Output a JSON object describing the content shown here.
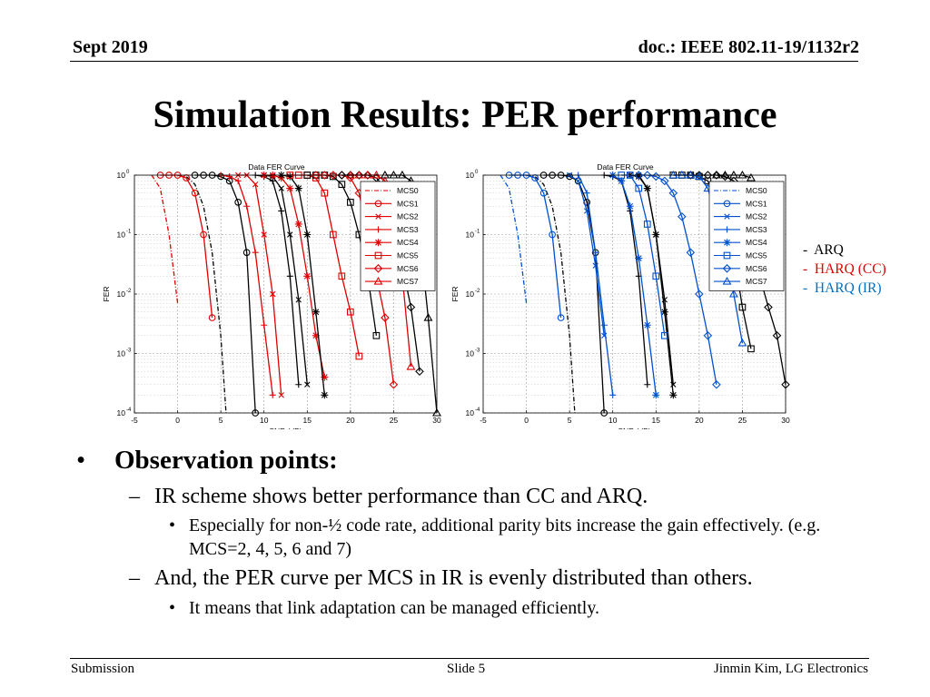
{
  "header": {
    "date": "Sept 2019",
    "doc": "doc.: IEEE 802.11-19/1132r2"
  },
  "title": "Simulation Results: PER performance",
  "legend": {
    "items": [
      {
        "dash": "-",
        "label": "ARQ",
        "color": "#000000"
      },
      {
        "dash": "-",
        "label": "HARQ (CC)",
        "color": "#e00000"
      },
      {
        "dash": "-",
        "label": "HARQ (IR)",
        "color": "#0070c0"
      }
    ]
  },
  "chart_data": [
    {
      "type": "line",
      "title": "Data FER Curve",
      "xlabel": "SNR (dB)",
      "ylabel": "FER",
      "yscale": "log",
      "xlim": [
        -5,
        30
      ],
      "ylim": [
        0.0001,
        1
      ],
      "xticks": [
        "-5",
        "0",
        "5",
        "10",
        "15",
        "20",
        "25",
        "30"
      ],
      "yticks": [
        {
          "base": "10",
          "exp": "0"
        },
        {
          "base": "10",
          "exp": "-1"
        },
        {
          "base": "10",
          "exp": "-2"
        },
        {
          "base": "10",
          "exp": "-3"
        },
        {
          "base": "10",
          "exp": "-4"
        }
      ],
      "legend_position": "top-right",
      "legend": [
        "MCS0",
        "MCS1",
        "MCS2",
        "MCS3",
        "MCS4",
        "MCS5",
        "MCS6",
        "MCS7"
      ],
      "series": [
        {
          "name": "MCS0",
          "scheme": "CC",
          "color": "#e00000",
          "marker": "none",
          "dash": "dashdot",
          "x": [
            -3,
            -2,
            -1,
            0
          ],
          "y": [
            1,
            0.6,
            0.1,
            0.007
          ]
        },
        {
          "name": "MCS0",
          "scheme": "ARQ",
          "color": "#000000",
          "marker": "none",
          "dash": "dashdot",
          "x": [
            0,
            1,
            2,
            3,
            4,
            5,
            5.6
          ],
          "y": [
            1,
            0.95,
            0.7,
            0.3,
            0.05,
            0.002,
            0.0001
          ]
        },
        {
          "name": "MCS1",
          "scheme": "CC",
          "color": "#e00000",
          "marker": "circle",
          "x": [
            -2,
            -1,
            0,
            1,
            2,
            3,
            4
          ],
          "y": [
            1,
            1,
            1,
            0.9,
            0.5,
            0.1,
            0.004
          ]
        },
        {
          "name": "MCS1",
          "scheme": "ARQ",
          "color": "#000000",
          "marker": "circle",
          "x": [
            2,
            3,
            4,
            5,
            6,
            7,
            8,
            9
          ],
          "y": [
            1,
            1,
            1,
            0.95,
            0.8,
            0.35,
            0.05,
            0.0001
          ]
        },
        {
          "name": "MCS2",
          "scheme": "CC",
          "color": "#e00000",
          "marker": "x",
          "x": [
            7,
            8,
            9,
            10,
            11,
            12
          ],
          "y": [
            1,
            1,
            0.7,
            0.1,
            0.01,
            0.0002
          ]
        },
        {
          "name": "MCS2",
          "scheme": "ARQ",
          "color": "#000000",
          "marker": "x",
          "x": [
            10,
            11,
            12,
            13,
            14,
            15
          ],
          "y": [
            1,
            0.95,
            0.6,
            0.1,
            0.008,
            0.0003
          ]
        },
        {
          "name": "MCS3",
          "scheme": "CC",
          "color": "#e00000",
          "marker": "plus",
          "x": [
            5,
            6,
            7,
            8,
            9,
            10,
            11
          ],
          "y": [
            1,
            0.95,
            0.8,
            0.3,
            0.05,
            0.003,
            0.0002
          ]
        },
        {
          "name": "MCS3",
          "scheme": "ARQ",
          "color": "#000000",
          "marker": "plus",
          "x": [
            9,
            10,
            11,
            12,
            13,
            14
          ],
          "y": [
            1,
            0.95,
            0.8,
            0.25,
            0.02,
            0.0003
          ]
        },
        {
          "name": "MCS4",
          "scheme": "CC",
          "color": "#e00000",
          "marker": "star",
          "x": [
            10,
            11,
            12,
            13,
            14,
            15,
            16,
            17
          ],
          "y": [
            1,
            1,
            0.9,
            0.6,
            0.15,
            0.02,
            0.002,
            0.0004
          ]
        },
        {
          "name": "MCS4",
          "scheme": "ARQ",
          "color": "#000000",
          "marker": "star",
          "x": [
            12,
            13,
            14,
            15,
            16,
            17
          ],
          "y": [
            1,
            0.95,
            0.6,
            0.1,
            0.005,
            0.0002
          ]
        },
        {
          "name": "MCS5",
          "scheme": "CC",
          "color": "#e00000",
          "marker": "square",
          "x": [
            13,
            14,
            15,
            16,
            17,
            18,
            19,
            20,
            21
          ],
          "y": [
            1,
            1,
            1,
            0.9,
            0.5,
            0.1,
            0.02,
            0.005,
            0.0009
          ]
        },
        {
          "name": "MCS5",
          "scheme": "ARQ",
          "color": "#000000",
          "marker": "square",
          "x": [
            15,
            16,
            17,
            18,
            19,
            20,
            21,
            22,
            23
          ],
          "y": [
            1,
            1,
            1,
            0.95,
            0.7,
            0.35,
            0.1,
            0.02,
            0.002
          ]
        },
        {
          "name": "MCS6",
          "scheme": "CC",
          "color": "#e00000",
          "marker": "diamond",
          "x": [
            16,
            17,
            18,
            19,
            20,
            21,
            22,
            23,
            24,
            25
          ],
          "y": [
            1,
            1,
            1,
            1,
            0.9,
            0.5,
            0.1,
            0.02,
            0.004,
            0.0003
          ]
        },
        {
          "name": "MCS6",
          "scheme": "ARQ",
          "color": "#000000",
          "marker": "diamond",
          "x": [
            19,
            20,
            21,
            22,
            23,
            24,
            25,
            26,
            27,
            28
          ],
          "y": [
            1,
            1,
            1,
            1,
            0.9,
            0.6,
            0.15,
            0.03,
            0.006,
            0.0005
          ]
        },
        {
          "name": "MCS7",
          "scheme": "CC",
          "color": "#e00000",
          "marker": "triangle",
          "x": [
            20,
            21,
            22,
            23,
            24,
            25,
            26,
            27
          ],
          "y": [
            1,
            1,
            1,
            1,
            0.8,
            0.2,
            0.02,
            0.0006
          ]
        },
        {
          "name": "MCS7",
          "scheme": "ARQ",
          "color": "#000000",
          "marker": "triangle",
          "x": [
            24,
            25,
            26,
            27,
            28,
            29,
            30
          ],
          "y": [
            1,
            1,
            1,
            0.8,
            0.1,
            0.004,
            0.0001
          ]
        }
      ]
    },
    {
      "type": "line",
      "title": "Data FER Curve",
      "xlabel": "SNR (dB)",
      "ylabel": "FER",
      "yscale": "log",
      "xlim": [
        -5,
        30
      ],
      "ylim": [
        0.0001,
        1
      ],
      "xticks": [
        "-5",
        "0",
        "5",
        "10",
        "15",
        "20",
        "25",
        "30"
      ],
      "yticks": [
        {
          "base": "10",
          "exp": "0"
        },
        {
          "base": "10",
          "exp": "-1"
        },
        {
          "base": "10",
          "exp": "-2"
        },
        {
          "base": "10",
          "exp": "-3"
        },
        {
          "base": "10",
          "exp": "-4"
        }
      ],
      "legend_position": "top-right",
      "legend": [
        "MCS0",
        "MCS1",
        "MCS2",
        "MCS3",
        "MCS4",
        "MCS5",
        "MCS6",
        "MCS7"
      ],
      "series": [
        {
          "name": "MCS0",
          "scheme": "IR",
          "color": "#0050d0",
          "marker": "none",
          "dash": "dashdot",
          "x": [
            -3,
            -2,
            -1,
            0
          ],
          "y": [
            1,
            0.6,
            0.1,
            0.007
          ]
        },
        {
          "name": "MCS0",
          "scheme": "ARQ",
          "color": "#000000",
          "marker": "none",
          "dash": "dashdot",
          "x": [
            0,
            1,
            2,
            3,
            4,
            5,
            5.6
          ],
          "y": [
            1,
            0.95,
            0.7,
            0.3,
            0.05,
            0.002,
            0.0001
          ]
        },
        {
          "name": "MCS1",
          "scheme": "IR",
          "color": "#0050d0",
          "marker": "circle",
          "x": [
            -2,
            -1,
            0,
            1,
            2,
            3,
            4
          ],
          "y": [
            1,
            1,
            1,
            0.9,
            0.5,
            0.1,
            0.004
          ]
        },
        {
          "name": "MCS1",
          "scheme": "ARQ",
          "color": "#000000",
          "marker": "circle",
          "x": [
            2,
            3,
            4,
            5,
            6,
            7,
            8,
            9
          ],
          "y": [
            1,
            1,
            1,
            0.95,
            0.8,
            0.35,
            0.05,
            0.0001
          ]
        },
        {
          "name": "MCS2",
          "scheme": "IR",
          "color": "#0050d0",
          "marker": "x",
          "x": [
            5,
            6,
            7,
            8,
            9
          ],
          "y": [
            1,
            0.8,
            0.25,
            0.03,
            0.002
          ]
        },
        {
          "name": "MCS2",
          "scheme": "ARQ",
          "color": "#000000",
          "marker": "x",
          "x": [
            13,
            14,
            15,
            16,
            17
          ],
          "y": [
            1,
            0.6,
            0.1,
            0.008,
            0.0003
          ]
        },
        {
          "name": "MCS3",
          "scheme": "IR",
          "color": "#0050d0",
          "marker": "plus",
          "x": [
            6,
            7,
            8,
            9,
            10
          ],
          "y": [
            1,
            0.5,
            0.05,
            0.003,
            0.0002
          ]
        },
        {
          "name": "MCS3",
          "scheme": "ARQ",
          "color": "#000000",
          "marker": "plus",
          "x": [
            9,
            10,
            11,
            12,
            13,
            14
          ],
          "y": [
            1,
            0.95,
            0.8,
            0.25,
            0.02,
            0.0003
          ]
        },
        {
          "name": "MCS4",
          "scheme": "IR",
          "color": "#0050d0",
          "marker": "star",
          "x": [
            10,
            11,
            12,
            13,
            14,
            15
          ],
          "y": [
            1,
            0.8,
            0.3,
            0.04,
            0.003,
            0.0002
          ]
        },
        {
          "name": "MCS4",
          "scheme": "ARQ",
          "color": "#000000",
          "marker": "star",
          "x": [
            12,
            13,
            14,
            15,
            16,
            17
          ],
          "y": [
            1,
            0.95,
            0.6,
            0.1,
            0.005,
            0.0002
          ]
        },
        {
          "name": "MCS5",
          "scheme": "IR",
          "color": "#0050d0",
          "marker": "square",
          "x": [
            11,
            12,
            13,
            14,
            15,
            16
          ],
          "y": [
            1,
            1,
            0.6,
            0.15,
            0.02,
            0.002
          ]
        },
        {
          "name": "MCS5",
          "scheme": "ARQ",
          "color": "#000000",
          "marker": "square",
          "x": [
            17,
            18,
            19,
            20,
            21,
            22,
            23,
            24,
            25,
            26
          ],
          "y": [
            1,
            1,
            1,
            0.95,
            0.8,
            0.4,
            0.15,
            0.05,
            0.006,
            0.0012
          ]
        },
        {
          "name": "MCS6",
          "scheme": "IR",
          "color": "#0050d0",
          "marker": "diamond",
          "x": [
            13,
            14,
            15,
            16,
            17,
            18,
            19,
            20,
            21,
            22
          ],
          "y": [
            1,
            1,
            0.95,
            0.8,
            0.5,
            0.2,
            0.05,
            0.01,
            0.002,
            0.0003
          ]
        },
        {
          "name": "MCS6",
          "scheme": "ARQ",
          "color": "#000000",
          "marker": "diamond",
          "x": [
            19,
            20,
            21,
            22,
            23,
            24,
            25,
            26,
            27,
            28,
            29,
            30
          ],
          "y": [
            1,
            1,
            1,
            1,
            0.95,
            0.8,
            0.4,
            0.1,
            0.02,
            0.006,
            0.002,
            0.0003
          ]
        },
        {
          "name": "MCS7",
          "scheme": "IR",
          "color": "#0050d0",
          "marker": "triangle",
          "x": [
            17,
            18,
            19,
            20,
            21,
            22,
            23,
            24,
            25
          ],
          "y": [
            1,
            1,
            1,
            0.95,
            0.6,
            0.2,
            0.05,
            0.01,
            0.0015
          ]
        },
        {
          "name": "MCS7",
          "scheme": "ARQ",
          "color": "#000000",
          "marker": "triangle",
          "x": [
            22,
            23,
            24,
            25,
            26
          ],
          "y": [
            1,
            1,
            1,
            1,
            0.9
          ]
        }
      ]
    }
  ],
  "bullets": {
    "heading": "Observation points:",
    "points": [
      {
        "text": "IR scheme shows better performance than CC and ARQ.",
        "sub": [
          "Especially for non-½ code rate, additional parity bits increase the gain effectively. (e.g. MCS=2, 4, 5, 6 and 7)"
        ]
      },
      {
        "text": "And, the PER curve per MCS in IR is evenly distributed than others.",
        "sub": [
          "It means that link adaptation can be managed efficiently."
        ]
      }
    ]
  },
  "footer": {
    "left": "Submission",
    "center": "Slide 5",
    "right": "Jinmin Kim, LG Electronics"
  }
}
